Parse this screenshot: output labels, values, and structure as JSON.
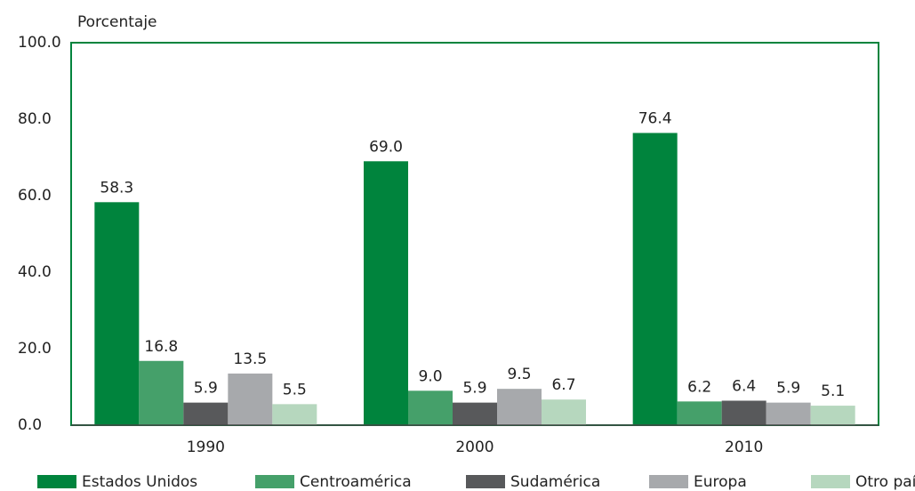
{
  "chart_data": {
    "type": "bar",
    "y_label": "Porcentaje",
    "categories": [
      "1990",
      "2000",
      "2010"
    ],
    "series": [
      {
        "name": "Estados Unidos",
        "color": "#00843d",
        "values": [
          58.3,
          69.0,
          76.4
        ],
        "value_labels": [
          "58.3",
          "69.0",
          "76.4"
        ]
      },
      {
        "name": "Centroamérica",
        "color": "#45a06a",
        "values": [
          16.8,
          9.0,
          6.2
        ],
        "value_labels": [
          "16.8",
          "9.0",
          "6.2"
        ]
      },
      {
        "name": "Sudamérica",
        "color": "#58595b",
        "values": [
          5.9,
          5.9,
          6.4
        ],
        "value_labels": [
          "5.9",
          "5.9",
          "6.4"
        ]
      },
      {
        "name": "Europa",
        "color": "#a7a9ac",
        "values": [
          13.5,
          9.5,
          5.9
        ],
        "value_labels": [
          "13.5",
          "9.5",
          "5.9"
        ]
      },
      {
        "name": "Otro país",
        "color": "#b6d7be",
        "values": [
          5.5,
          6.7,
          5.1
        ],
        "value_labels": [
          "5.5",
          "6.7",
          "5.1"
        ]
      }
    ],
    "ylim": [
      0,
      100
    ],
    "yticks": [
      {
        "value": 0,
        "label": "0.0"
      },
      {
        "value": 20,
        "label": "20.0"
      },
      {
        "value": 40,
        "label": "40.0"
      },
      {
        "value": 60,
        "label": "60.0"
      },
      {
        "value": 80,
        "label": "80.0"
      },
      {
        "value": 100,
        "label": "100.0"
      }
    ],
    "legend": "bottom",
    "frame_color": "#00843d"
  }
}
